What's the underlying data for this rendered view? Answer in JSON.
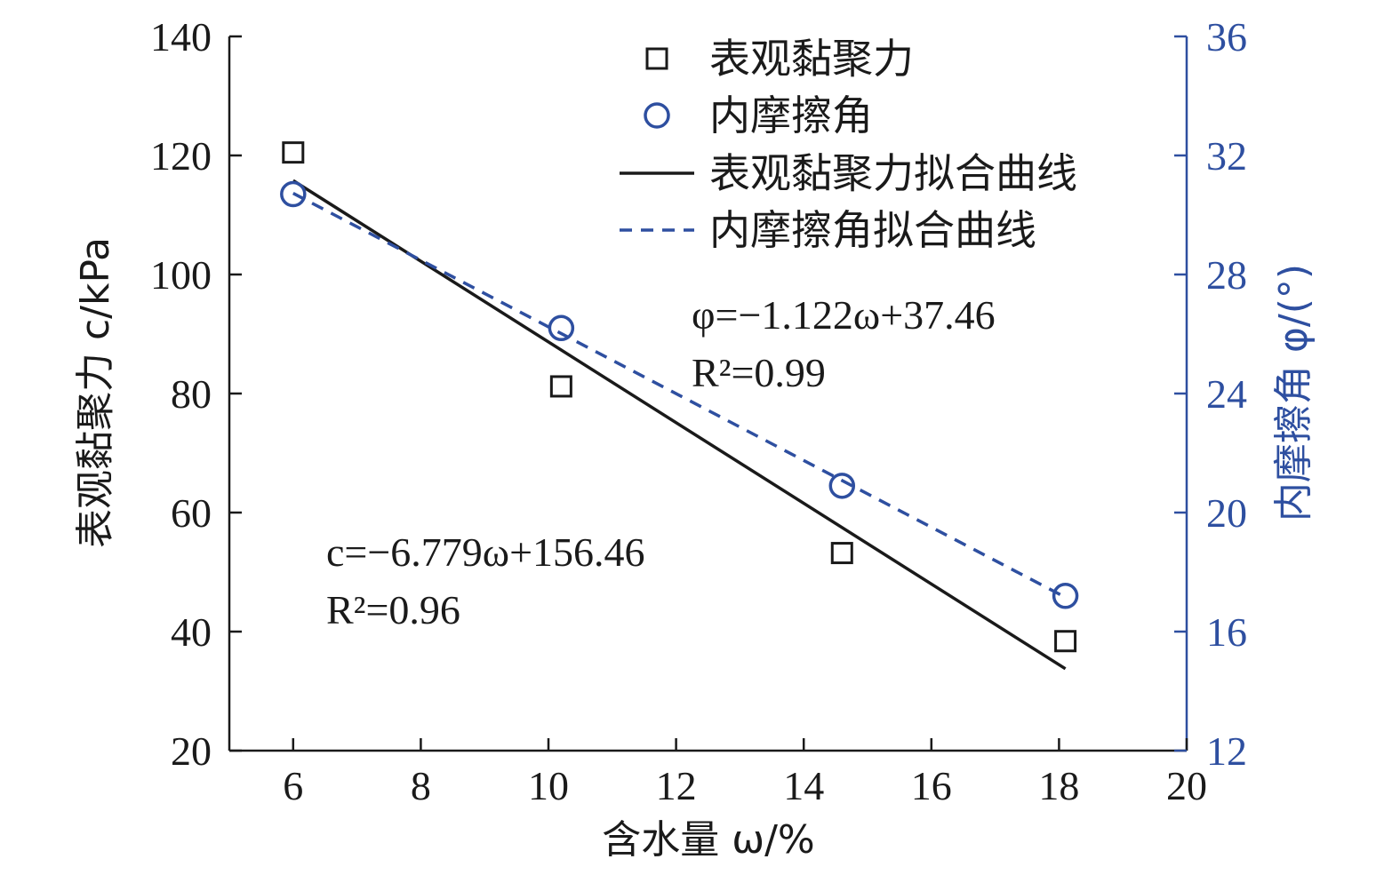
{
  "chart_data": {
    "type": "scatter",
    "x_axis": {
      "label": "含水量 ω/%",
      "range": [
        5,
        20
      ],
      "ticks": [
        6,
        8,
        10,
        12,
        14,
        16,
        18,
        20
      ],
      "tick_labels": [
        "6",
        "8",
        "10",
        "12",
        "14",
        "16",
        "18",
        "20"
      ]
    },
    "y_left": {
      "label": "表观黏聚力 c/kPa",
      "range": [
        20,
        140
      ],
      "ticks": [
        20,
        40,
        60,
        80,
        100,
        120,
        140
      ],
      "tick_labels": [
        "20",
        "40",
        "60",
        "80",
        "100",
        "120",
        "140"
      ],
      "color": "#1a1a1a"
    },
    "y_right": {
      "label": "内摩擦角 φ/(°)",
      "range": [
        12,
        36
      ],
      "ticks": [
        12,
        16,
        20,
        24,
        28,
        32,
        36
      ],
      "tick_labels": [
        "12",
        "16",
        "20",
        "24",
        "28",
        "32",
        "36"
      ],
      "color": "#2e4fa0"
    },
    "series": [
      {
        "name": "表观黏聚力",
        "axis": "left",
        "marker": "square",
        "color": "#1a1a1a",
        "x": [
          6.0,
          10.2,
          14.6,
          18.1
        ],
        "y": [
          120.5,
          81.2,
          53.2,
          38.4
        ]
      },
      {
        "name": "内摩擦角",
        "axis": "right",
        "marker": "circle",
        "color": "#2e4fa0",
        "x": [
          6.0,
          10.2,
          14.6,
          18.1
        ],
        "y": [
          30.7,
          26.2,
          20.9,
          17.2
        ]
      }
    ],
    "fits": [
      {
        "name": "表观黏聚力拟合曲线",
        "axis": "left",
        "style": "solid",
        "color": "#1a1a1a",
        "slope": -6.779,
        "intercept": 156.46,
        "x_range": [
          6.0,
          18.1
        ]
      },
      {
        "name": "内摩擦角拟合曲线",
        "axis": "right",
        "style": "dashed",
        "color": "#2e4fa0",
        "slope": -1.122,
        "intercept": 37.46,
        "x_range": [
          6.0,
          18.1
        ]
      }
    ],
    "annotations": {
      "phi_equation": "φ=−1.122ω+37.46",
      "phi_r2": "R²=0.99",
      "c_equation": "c=−6.779ω+156.46",
      "c_r2": "R²=0.96"
    },
    "legend": {
      "placement": "top-right",
      "entries": [
        "表观黏聚力",
        "内摩擦角",
        "表观黏聚力拟合曲线",
        "内摩擦角拟合曲线"
      ]
    },
    "grid": false
  }
}
